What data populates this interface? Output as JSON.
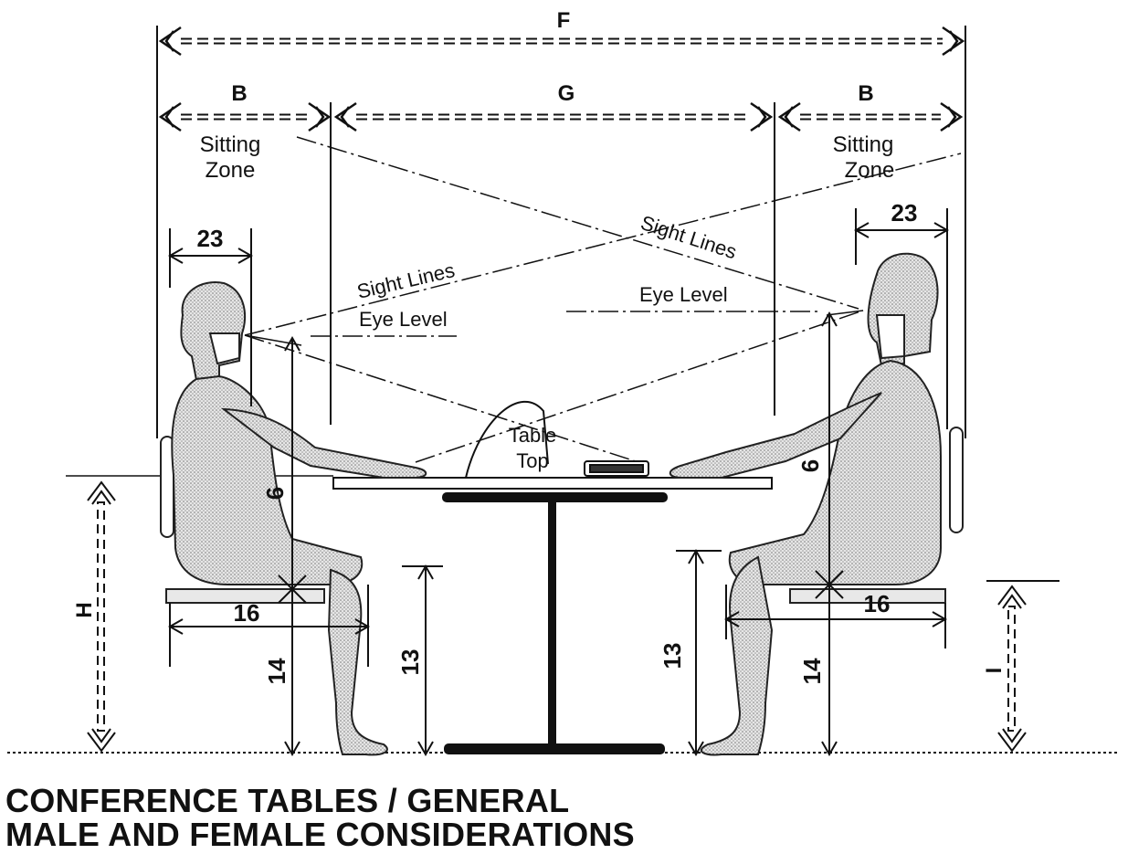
{
  "dimensions": {
    "F": "F",
    "B": "B",
    "G": "G",
    "H": "H",
    "I": "I",
    "v23": "23",
    "v16": "16",
    "v14": "14",
    "v13": "13",
    "v6": "6"
  },
  "labels": {
    "sitting": "Sitting",
    "zone": "Zone",
    "sight_lines": "Sight Lines",
    "eye_level": "Eye Level",
    "table": "Table",
    "top": "Top"
  },
  "title": {
    "line1": "CONFERENCE TABLES / GENERAL",
    "line2": "MALE AND FEMALE CONSIDERATIONS"
  },
  "colors": {
    "ink": "#111111",
    "figure_fill": "#c8c8c8",
    "paper": "#ffffff"
  }
}
